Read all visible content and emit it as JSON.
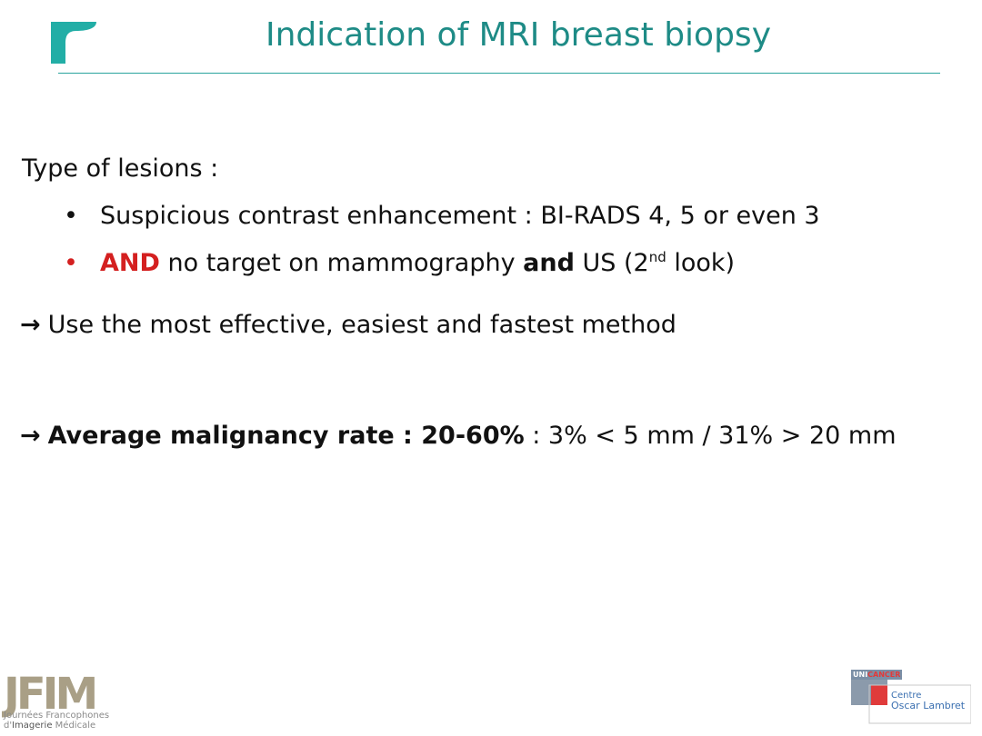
{
  "header": {
    "title": "Indication of MRI breast biopsy"
  },
  "content": {
    "type_label": "Type of lesions :",
    "bullet1": "Suspicious contrast enhancement :  BI-RADS 4, 5 or even 3",
    "bullet2_and": "AND",
    "bullet2_mid": " no target on mammography ",
    "bullet2_bold": "and",
    "bullet2_us": " US (2",
    "bullet2_sup": "nd",
    "bullet2_end": " look)",
    "method_arrow": "→",
    "method_text": "Use the most effective, easiest and fastest method",
    "rate_arrow": "→",
    "rate_bold": "Average malignancy rate : 20-60%",
    "rate_detail": "  : 3% < 5 mm / 31% > 20 mm"
  },
  "footer": {
    "jfim_logo_text": "JFIM",
    "jfim_line1": "Journées Francophones",
    "jfim_line2a": "d'",
    "jfim_line2b": "Imagerie",
    "jfim_line2c": " Médicale",
    "unicancer_a": "UNI",
    "unicancer_b": "CANCER",
    "centre_line1": "Centre",
    "centre_line2": "Oscar Lambret"
  },
  "colors": {
    "title": "#1e8b86",
    "accent_red": "#d42020",
    "logo_teal": "#22aea6"
  },
  "icons": {
    "top_logo": "teal-flag-logo",
    "bullet": "bullet-dot-icon",
    "arrow": "right-arrow-icon"
  }
}
